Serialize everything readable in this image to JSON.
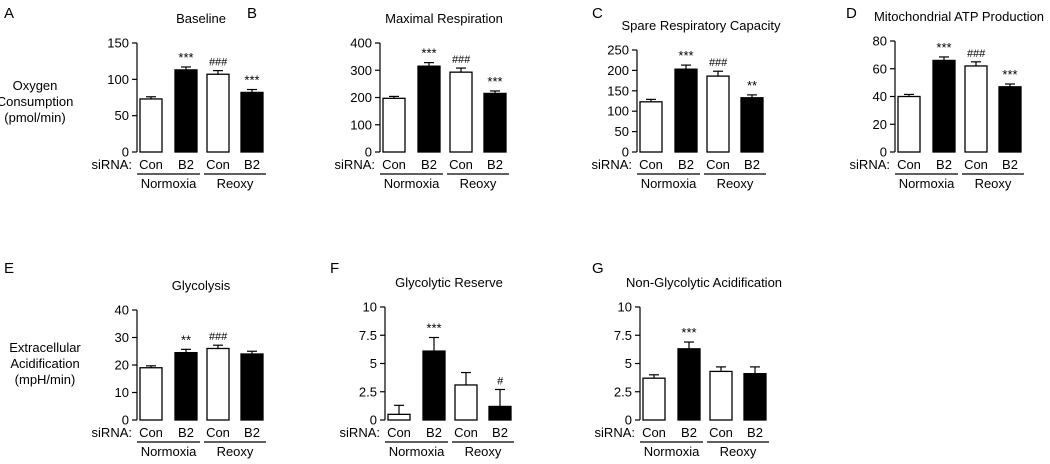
{
  "figure": {
    "top_ylabel": [
      "Oxygen",
      "Consumption",
      "(pmol/min)"
    ],
    "bottom_ylabel": [
      "Extracellular",
      "Acidification",
      "(mpH/min)"
    ],
    "sirna_label": "siRNA:",
    "group_labels": [
      "Normoxia",
      "Reoxy"
    ],
    "bar_colors": [
      "#ffffff",
      "#000000",
      "#ffffff",
      "#000000"
    ]
  },
  "chart_data": [
    {
      "panel": "A",
      "type": "bar",
      "title": "Baseline",
      "categories": [
        "Con",
        "B2",
        "Con",
        "B2"
      ],
      "values": [
        73,
        113,
        107,
        82
      ],
      "errors": [
        3,
        4,
        5,
        4
      ],
      "annotations": [
        "",
        "***",
        "###",
        "***"
      ],
      "ylim": [
        0,
        150
      ],
      "yticks": [
        0,
        50,
        100,
        150
      ],
      "ytick_labels": [
        "0",
        "50",
        "100",
        "150"
      ]
    },
    {
      "panel": "B",
      "type": "bar",
      "title": "Maximal Respiration",
      "categories": [
        "Con",
        "B2",
        "Con",
        "B2"
      ],
      "values": [
        197,
        315,
        293,
        215
      ],
      "errors": [
        7,
        13,
        15,
        9
      ],
      "annotations": [
        "",
        "***",
        "###",
        "***"
      ],
      "ylim": [
        0,
        400
      ],
      "yticks": [
        0,
        100,
        200,
        300,
        400
      ],
      "ytick_labels": [
        "0",
        "100",
        "200",
        "300",
        "400"
      ]
    },
    {
      "panel": "C",
      "type": "bar",
      "title": "Spare Respiratory Capacity",
      "categories": [
        "Con",
        "B2",
        "Con",
        "B2"
      ],
      "values": [
        123,
        203,
        186,
        133
      ],
      "errors": [
        6,
        10,
        12,
        7
      ],
      "annotations": [
        "",
        "***",
        "###",
        "**"
      ],
      "ylim": [
        0,
        250
      ],
      "yticks": [
        0,
        50,
        100,
        150,
        200,
        250
      ],
      "ytick_labels": [
        "0",
        "50",
        "100",
        "150",
        "200",
        "250"
      ]
    },
    {
      "panel": "D",
      "type": "bar",
      "title": "Mitochondrial ATP Production",
      "categories": [
        "Con",
        "B2",
        "Con",
        "B2"
      ],
      "values": [
        40,
        66,
        62,
        47
      ],
      "errors": [
        1.5,
        2.5,
        3,
        2
      ],
      "annotations": [
        "",
        "***",
        "###",
        "***"
      ],
      "ylim": [
        0,
        80
      ],
      "yticks": [
        0,
        20,
        40,
        60,
        80
      ],
      "ytick_labels": [
        "0",
        "20",
        "40",
        "60",
        "80"
      ]
    },
    {
      "panel": "E",
      "type": "bar",
      "title": "Glycolysis",
      "categories": [
        "Con",
        "B2",
        "Con",
        "B2"
      ],
      "values": [
        19,
        24.5,
        26,
        24
      ],
      "errors": [
        0.7,
        1.2,
        1.2,
        1
      ],
      "annotations": [
        "",
        "**",
        "###",
        ""
      ],
      "ylim": [
        0,
        40
      ],
      "yticks": [
        0,
        10,
        20,
        30,
        40
      ],
      "ytick_labels": [
        "0",
        "10",
        "20",
        "30",
        "40"
      ]
    },
    {
      "panel": "F",
      "type": "bar",
      "title": "Glycolytic Reserve",
      "categories": [
        "Con",
        "B2",
        "Con",
        "B2"
      ],
      "values": [
        0.5,
        6.1,
        3.1,
        1.2
      ],
      "errors": [
        0.8,
        1.2,
        1.1,
        1.5
      ],
      "annotations": [
        "",
        "***",
        "",
        "#"
      ],
      "ylim": [
        0,
        10
      ],
      "yticks": [
        0,
        2.5,
        5,
        7.5,
        10
      ],
      "ytick_labels": [
        "0",
        "2.5",
        "5",
        "7.5",
        "10"
      ]
    },
    {
      "panel": "G",
      "type": "bar",
      "title": "Non-Glycolytic Acidification",
      "categories": [
        "Con",
        "B2",
        "Con",
        "B2"
      ],
      "values": [
        3.7,
        6.3,
        4.3,
        4.1
      ],
      "errors": [
        0.3,
        0.6,
        0.4,
        0.6
      ],
      "annotations": [
        "",
        "***",
        "",
        ""
      ],
      "ylim": [
        0,
        10
      ],
      "yticks": [
        0,
        2.5,
        5,
        7.5,
        10
      ],
      "ytick_labels": [
        "0",
        "2.5",
        "5",
        "7.5",
        "10"
      ]
    }
  ]
}
